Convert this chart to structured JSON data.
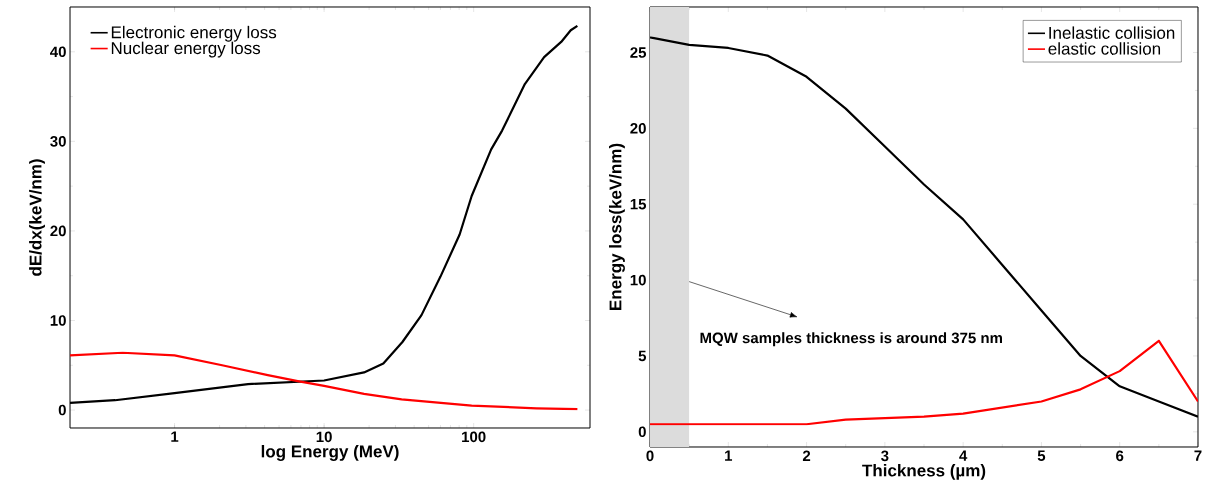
{
  "chart_data": [
    {
      "type": "line",
      "xlabel": "log Energy (MeV)",
      "ylabel": "dE/dx(keV/nm)",
      "log": "x",
      "xlim": [
        0.2,
        600
      ],
      "xticks": [
        1,
        10,
        100
      ],
      "ylim": [
        -2,
        45
      ],
      "yticks": [
        0,
        10,
        20,
        30,
        40
      ],
      "legend": "top left",
      "grid": false,
      "marker": "none",
      "line_style": "solid",
      "series": [
        {
          "name": "Electronic energy loss",
          "color": "#000000",
          "x": [
            0.2,
            0.4,
            1,
            3.1,
            10,
            18.5,
            24.9,
            33.4,
            44.8,
            60,
            80.6,
            97,
            131,
            155,
            220,
            296,
            385,
            446,
            494
          ],
          "values": [
            0.8,
            1.1,
            1.9,
            2.9,
            3.3,
            4.2,
            5.2,
            7.6,
            10.6,
            14.9,
            19.6,
            23.9,
            29.1,
            31.2,
            36.4,
            39.4,
            41.1,
            42.4,
            42.9
          ]
        },
        {
          "name": "Nuclear energy loss",
          "color": "#ff0000",
          "x": [
            0.2,
            0.45,
            1,
            2.08,
            4.2,
            6.8,
            10,
            18.5,
            33,
            97,
            263,
            494
          ],
          "values": [
            6.1,
            6.4,
            6.1,
            5.0,
            3.9,
            3.2,
            2.7,
            1.8,
            1.2,
            0.5,
            0.2,
            0.1
          ]
        }
      ]
    },
    {
      "type": "line",
      "xlabel": "Thickness (µm)",
      "ylabel": "Energy loss(keV/nm)",
      "xlim": [
        0,
        7
      ],
      "xticks": [
        0,
        1,
        2,
        3,
        4,
        5,
        6,
        7
      ],
      "ylim": [
        -1,
        28
      ],
      "yticks": [
        0,
        5,
        10,
        15,
        20,
        25
      ],
      "legend": "top right",
      "grid": false,
      "marker": "none",
      "line_style": "solid",
      "x": [
        0,
        0.5,
        1,
        1.5,
        2,
        2.5,
        3,
        3.5,
        4,
        4.5,
        5,
        5.5,
        6,
        6.5,
        7
      ],
      "series": [
        {
          "name": "Inelastic collision",
          "color": "#000000",
          "values": [
            26,
            25.5,
            25.3,
            24.8,
            23.4,
            21.3,
            18.8,
            16.3,
            14,
            11,
            8,
            5,
            3,
            2,
            1
          ]
        },
        {
          "name": "elastic collision",
          "color": "#ff0000",
          "values": [
            0.5,
            0.5,
            0.5,
            0.5,
            0.5,
            0.8,
            0.9,
            1.0,
            1.2,
            1.6,
            2.0,
            2.8,
            4.0,
            6.0,
            2.0
          ]
        }
      ],
      "bands": [
        {
          "axis": "x",
          "from": 0,
          "to": 0.5,
          "color": "#dcdcdc"
        }
      ],
      "annotations": [
        "MQW samples thickness is around 375 nm"
      ]
    }
  ]
}
